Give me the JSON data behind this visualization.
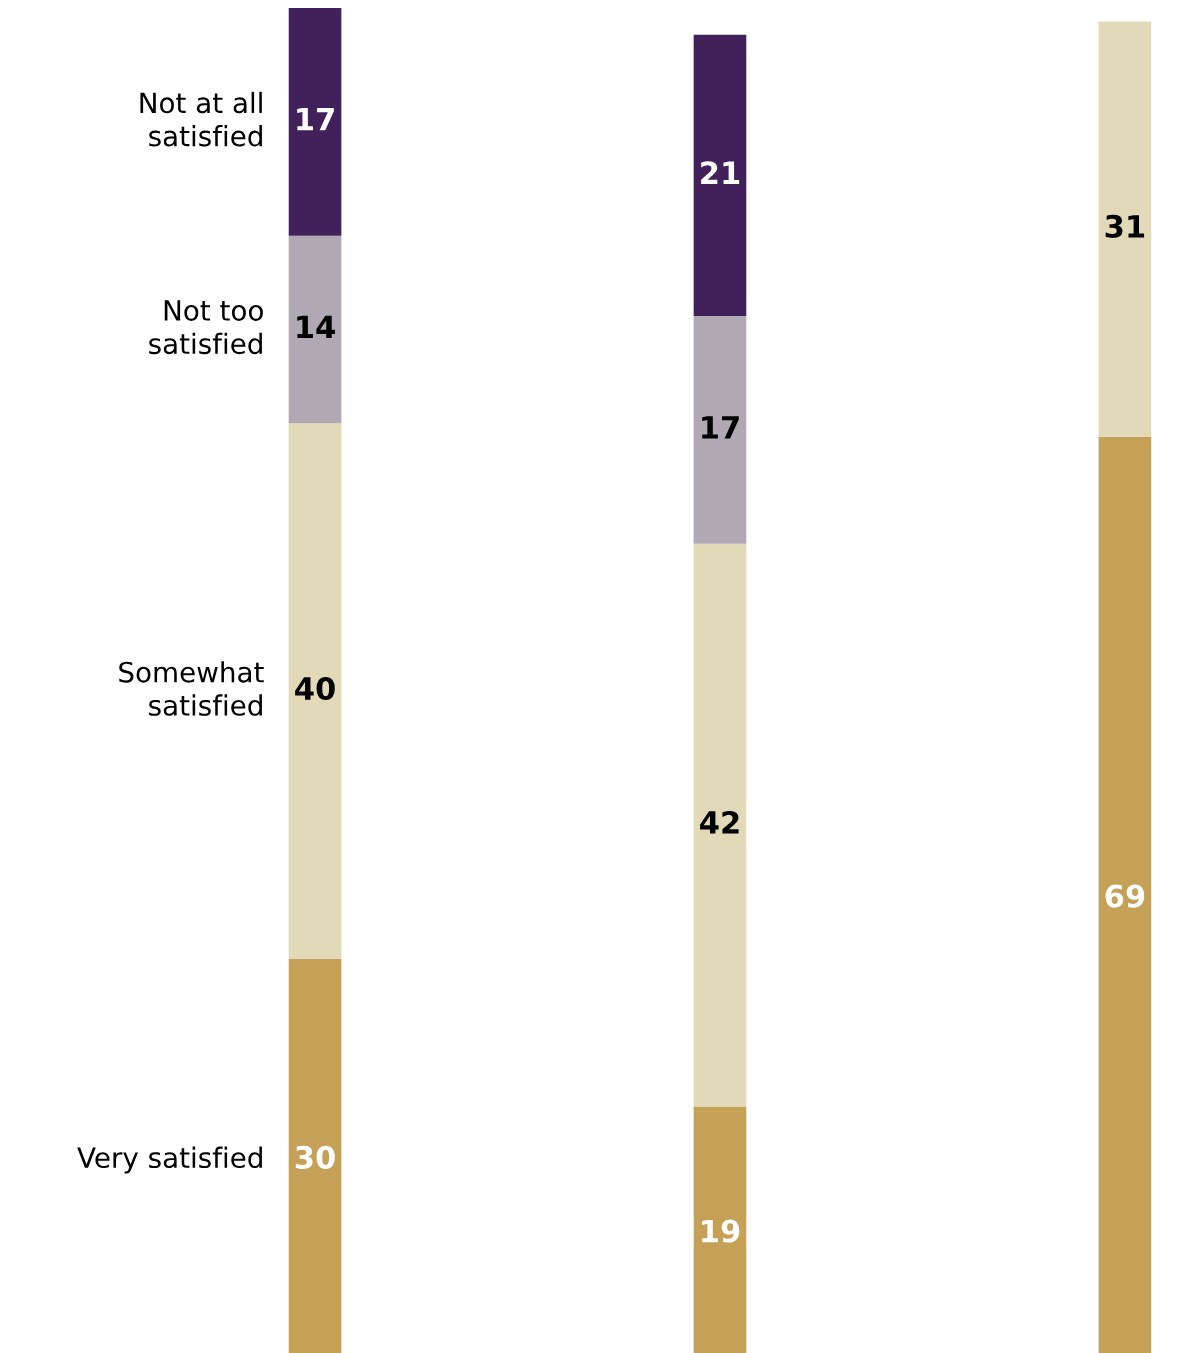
{
  "chart_data": {
    "type": "bar",
    "stacked": true,
    "categories": [
      null,
      null,
      null
    ],
    "ylim": [
      0,
      101
    ],
    "grid": false,
    "legend": false,
    "data_labels": true,
    "series": [
      {
        "name": "Very satisfied",
        "color": "#c4a157",
        "values": [
          30,
          19,
          69
        ]
      },
      {
        "name": "Somewhat satisfied",
        "color": "#e2d9b8",
        "values": [
          40,
          42,
          31
        ]
      },
      {
        "name": "Not too satisfied",
        "color": "#b0a8b3",
        "values": [
          14,
          17,
          null
        ]
      },
      {
        "name": "Not at all satisfied",
        "color": "#42215a",
        "values": [
          17,
          21,
          null
        ]
      }
    ]
  }
}
